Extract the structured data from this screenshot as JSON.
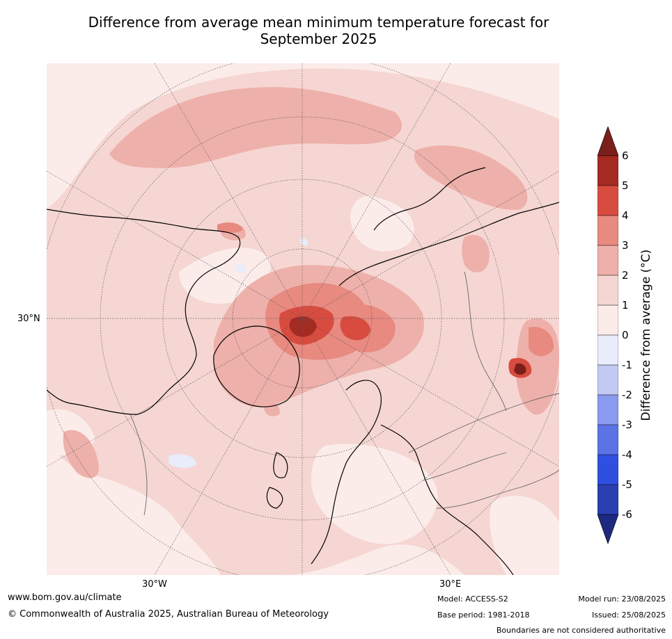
{
  "title": {
    "line1": "Difference from average mean minimum temperature forecast for",
    "line2": "September 2025"
  },
  "map": {
    "projection": "north-polar-stereographic",
    "lat_label": "30°N",
    "lon_labels": [
      "30°W",
      "30°E"
    ]
  },
  "colorbar": {
    "label": "Difference from average (°C)",
    "ticks": [
      "6",
      "5",
      "4",
      "3",
      "2",
      "1",
      "0",
      "-1",
      "-2",
      "-3",
      "-4",
      "-5",
      "-6"
    ],
    "colors": [
      "#7b1f1a",
      "#a52a22",
      "#d84c40",
      "#e88a80",
      "#eeb0aa",
      "#f5d6d2",
      "#fbece9",
      "#e8ecfb",
      "#c2c9f2",
      "#8a9aee",
      "#5c73e6",
      "#2f4fe0",
      "#2a3fb0",
      "#1e2a80"
    ]
  },
  "footer": {
    "url": "www.bom.gov.au/climate",
    "copyright": "© Commonwealth of Australia 2025, Australian Bureau of Meteorology",
    "model": "Model: ACCESS-S2",
    "base_period": "Base period: 1981-2018",
    "model_run": "Model run: 23/08/2025",
    "issued": "Issued: 25/08/2025",
    "disclaimer": "Boundaries are not considered authoritative"
  }
}
